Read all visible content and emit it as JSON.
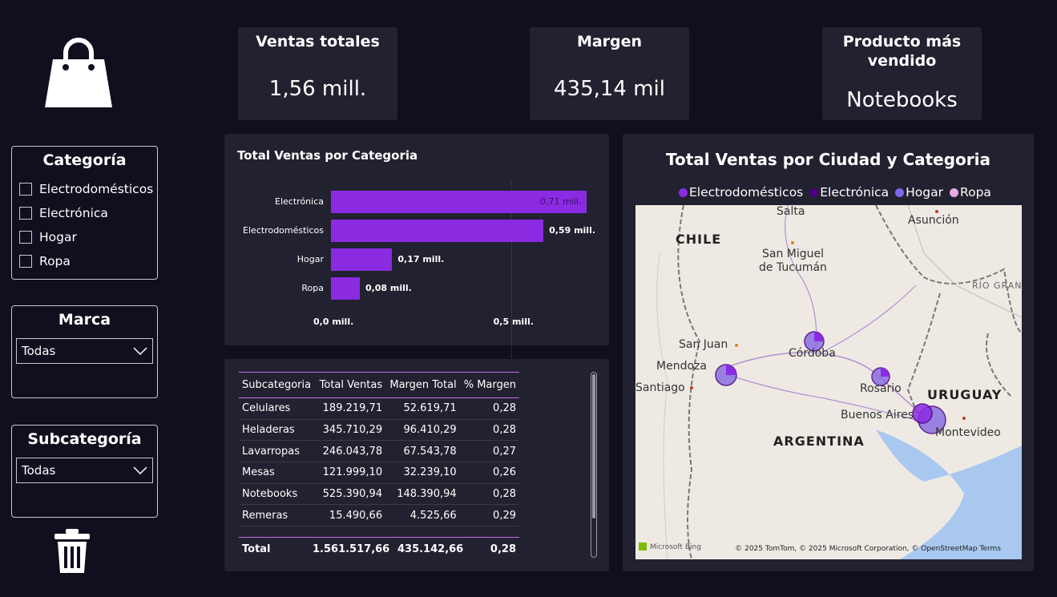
{
  "sidebar": {
    "categoria": {
      "title": "Categoría",
      "items": [
        "Electrodomésticos",
        "Electrónica",
        "Hogar",
        "Ropa"
      ]
    },
    "marca": {
      "title": "Marca",
      "selected": "Todas"
    },
    "subcategoria": {
      "title": "Subcategoría",
      "selected": "Todas"
    }
  },
  "kpis": {
    "ventas": {
      "label": "Ventas totales",
      "value": "1,56 mill."
    },
    "margen": {
      "label": "Margen",
      "value": "435,14 mil"
    },
    "producto": {
      "label_line1": "Producto más",
      "label_line2": "vendido",
      "value": "Notebooks"
    }
  },
  "bar_chart": {
    "title": "Total Ventas por Categoria",
    "x_ticks": [
      "0,0 mill.",
      "0,5 mill."
    ]
  },
  "chart_data": {
    "type": "bar",
    "orientation": "horizontal",
    "title": "Total Ventas por Categoria",
    "categories": [
      "Electrónica",
      "Electrodomésticos",
      "Hogar",
      "Ropa"
    ],
    "values": [
      0.71,
      0.59,
      0.17,
      0.08
    ],
    "value_labels": [
      "0,71 mill.",
      "0,59 mill.",
      "0,17 mill.",
      "0,08 mill."
    ],
    "xlim": [
      0,
      0.75
    ],
    "x_ticks": [
      0,
      0.5
    ],
    "color": "#8a2be2"
  },
  "table": {
    "headers": [
      "Subcategoria",
      "Total Ventas",
      "Margen Total",
      "% Margen"
    ],
    "rows": [
      [
        "Celulares",
        "189.219,71",
        "52.619,71",
        "0,28"
      ],
      [
        "Heladeras",
        "345.710,29",
        "96.410,29",
        "0,28"
      ],
      [
        "Lavarropas",
        "246.043,78",
        "67.543,78",
        "0,27"
      ],
      [
        "Mesas",
        "121.999,10",
        "32.239,10",
        "0,26"
      ],
      [
        "Notebooks",
        "525.390,94",
        "148.390,94",
        "0,28"
      ],
      [
        "Remeras",
        "15.490,66",
        "4.525,66",
        "0,29"
      ]
    ],
    "total": [
      "Total",
      "1.561.517,66",
      "435.142,66",
      "0,28"
    ]
  },
  "map": {
    "title": "Total Ventas por Ciudad y Categoria",
    "legend": [
      {
        "name": "Electrodomésticos",
        "color": "#8a2be2"
      },
      {
        "name": "Electrónica",
        "color": "#4b0082"
      },
      {
        "name": "Hogar",
        "color": "#7b68ee"
      },
      {
        "name": "Ropa",
        "color": "#e6a8e6"
      }
    ],
    "cities": [
      "Salta",
      "Asunción",
      "San Miguel",
      "de Tucumán",
      "RÍO GRANDE",
      "San Juan",
      "Córdoba",
      "Mendoza",
      "Santiago",
      "Rosario",
      "Buenos Aires",
      "Montevideo"
    ],
    "countries": [
      "CHILE",
      "URUGUAY",
      "ARGENTINA"
    ],
    "attribution": "© 2025 TomTom, © 2025 Microsoft Corporation, © OpenStreetMap  Terms",
    "bing": "Microsoft Bing"
  }
}
